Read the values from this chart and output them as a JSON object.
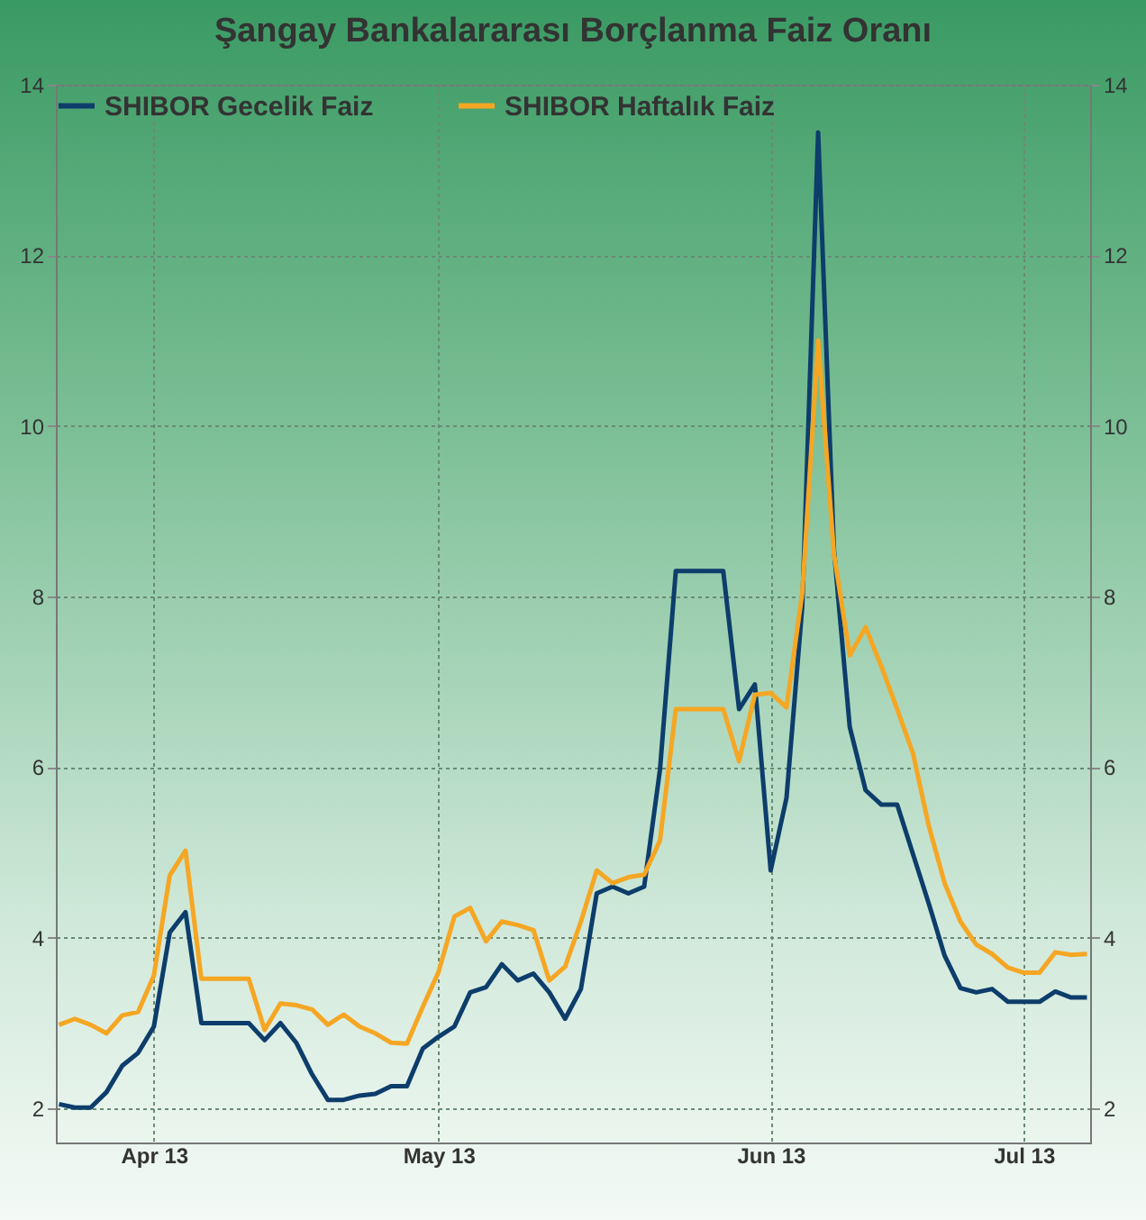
{
  "chart_data": {
    "type": "line",
    "title": "Şangay Bankalararası Borçlanma Faiz Oranı",
    "categories": [
      null,
      null,
      null,
      null,
      null,
      null,
      "Apr 13",
      null,
      null,
      null,
      null,
      null,
      null,
      null,
      null,
      null,
      null,
      null,
      null,
      null,
      null,
      null,
      null,
      null,
      "May 13",
      null,
      null,
      null,
      null,
      null,
      null,
      null,
      null,
      null,
      null,
      null,
      null,
      null,
      null,
      null,
      null,
      null,
      null,
      null,
      null,
      "Jun 13",
      null,
      null,
      null,
      null,
      null,
      null,
      null,
      null,
      null,
      null,
      null,
      null,
      null,
      null,
      null,
      "Jul 13",
      null,
      null,
      null,
      null
    ],
    "series": [
      {
        "name": "SHIBOR Gecelik Faiz",
        "color": "#0d3d6b",
        "values": [
          2.05,
          2.01,
          2.01,
          2.19,
          2.5,
          2.65,
          2.96,
          4.06,
          4.3,
          3.0,
          3.0,
          3.0,
          3.0,
          2.8,
          3.0,
          2.77,
          2.4,
          2.1,
          2.1,
          2.15,
          2.17,
          2.26,
          2.26,
          2.7,
          2.84,
          2.96,
          3.36,
          3.42,
          3.69,
          3.5,
          3.58,
          3.36,
          3.05,
          3.4,
          4.52,
          4.6,
          4.52,
          4.6,
          5.97,
          8.3,
          8.3,
          8.3,
          8.3,
          6.68,
          6.97,
          4.79,
          5.64,
          7.89,
          13.44,
          8.55,
          6.47,
          5.73,
          5.56,
          5.56,
          4.98,
          4.4,
          3.79,
          3.41,
          3.36,
          3.4,
          3.25,
          3.25,
          3.25,
          3.37,
          3.3,
          3.3
        ]
      },
      {
        "name": "SHIBOR Haftalık Faiz",
        "color": "#f5a623",
        "values": [
          2.98,
          3.05,
          2.98,
          2.88,
          3.09,
          3.13,
          3.56,
          4.73,
          5.02,
          3.52,
          3.52,
          3.52,
          3.52,
          2.92,
          3.23,
          3.21,
          3.16,
          2.98,
          3.1,
          2.96,
          2.88,
          2.77,
          2.76,
          3.19,
          3.6,
          4.25,
          4.35,
          3.96,
          4.19,
          4.15,
          4.09,
          3.5,
          3.66,
          4.19,
          4.79,
          4.64,
          4.71,
          4.74,
          5.14,
          6.68,
          6.68,
          6.68,
          6.68,
          6.07,
          6.85,
          6.87,
          6.7,
          8.05,
          11.0,
          8.5,
          7.31,
          7.64,
          7.18,
          6.68,
          6.16,
          5.31,
          4.64,
          4.19,
          3.92,
          3.81,
          3.65,
          3.59,
          3.59,
          3.83,
          3.8,
          3.81
        ]
      }
    ],
    "ylim": [
      1.6,
      14
    ],
    "yticks": [
      2,
      4,
      6,
      8,
      10,
      12,
      14
    ],
    "y2lim": [
      1.6,
      14
    ],
    "y2ticks": [
      2,
      4,
      6,
      8,
      10,
      12,
      14
    ],
    "grid": true,
    "legend": "top left",
    "line_style": "solid"
  }
}
